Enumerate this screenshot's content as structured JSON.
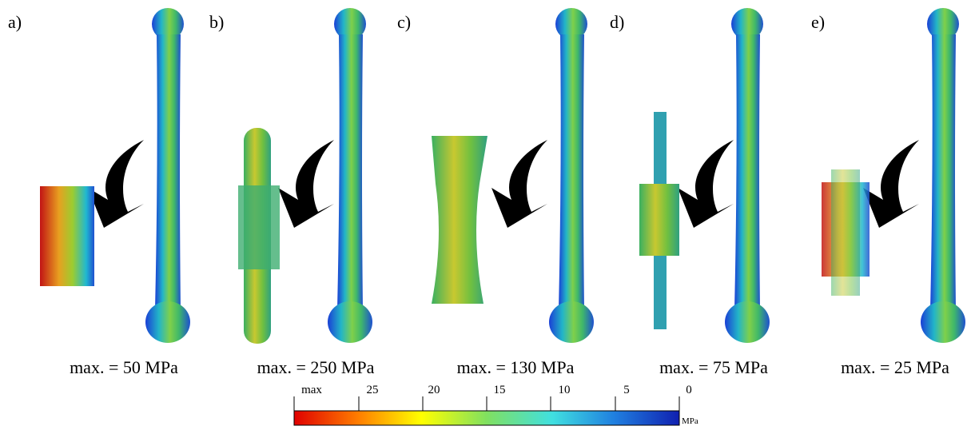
{
  "panels": [
    {
      "label": "a)",
      "caption": "max. = 50 MPa"
    },
    {
      "label": "b)",
      "caption": "max. = 250 MPa"
    },
    {
      "label": "c)",
      "caption": "max. = 130 MPa"
    },
    {
      "label": "d)",
      "caption": "max. = 75 MPa"
    },
    {
      "label": "e)",
      "caption": "max. = 25 MPa"
    }
  ],
  "colorbar": {
    "labels": [
      "max",
      "25",
      "20",
      "15",
      "10",
      "5",
      "0"
    ],
    "unit": "MPa"
  }
}
